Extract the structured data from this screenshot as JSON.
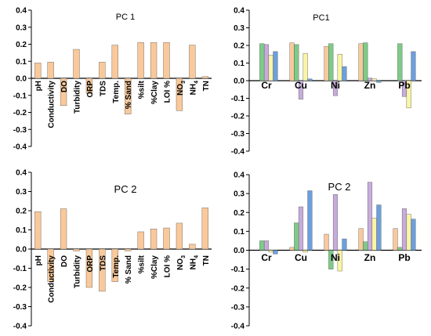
{
  "colors": {
    "peach": "#F9C99B",
    "green": "#7DCB87",
    "lavender": "#C7ACDB",
    "yellow": "#FAF5A6",
    "blue": "#6C9FDE",
    "bar_stroke": "#555555",
    "axis": "#000000"
  },
  "chart_data": [
    {
      "type": "bar",
      "title": "PC 1",
      "ylim": [
        -0.4,
        0.4
      ],
      "yticks": [
        "0.4",
        "0.3",
        "0.2",
        "0.1",
        "0.0",
        "-0.1",
        "-0.2",
        "-0.3",
        "-0.4"
      ],
      "categories": [
        "pH",
        "Conductivity",
        "DO",
        "Turbidity",
        "ORP",
        "TDS",
        "Temp.",
        "% Sand",
        "%silt",
        "%Clay",
        "LOI %",
        "NO3",
        "NH4",
        "TN"
      ],
      "values": [
        0.09,
        0.095,
        -0.16,
        0.17,
        -0.09,
        0.095,
        0.195,
        -0.21,
        0.21,
        0.21,
        0.21,
        -0.19,
        0.195,
        0.01
      ],
      "grid": false
    },
    {
      "type": "bar",
      "title": "PC1",
      "ylim": [
        -0.4,
        0.4
      ],
      "yticks": [
        "0.4",
        "0.3",
        "0.2",
        "0.1",
        "0.0",
        "-0.1",
        "-0.2",
        "-0.3",
        "-0.4"
      ],
      "categories": [
        "Cr",
        "Cu",
        "Ni",
        "Zn",
        "Pb"
      ],
      "series": [
        {
          "values": [
            0.0,
            0.215,
            0.195,
            0.21,
            0.0
          ]
        },
        {
          "values": [
            0.21,
            0.205,
            0.21,
            0.215,
            0.21
          ]
        },
        {
          "values": [
            0.205,
            -0.105,
            -0.085,
            0.015,
            -0.09
          ]
        },
        {
          "values": [
            0.145,
            0.155,
            0.15,
            0.01,
            -0.155
          ]
        },
        {
          "values": [
            0.165,
            0.01,
            0.08,
            -0.01,
            0.165
          ]
        }
      ],
      "grid": false
    },
    {
      "type": "bar",
      "title": "PC 2",
      "ylim": [
        -0.4,
        0.4
      ],
      "yticks": [
        "0.4",
        "0.3",
        "0.2",
        "0.1",
        "0.0",
        "-0.1",
        "-0.2",
        "-0.3",
        "-0.4"
      ],
      "categories": [
        "pH",
        "Conductivity",
        "DO",
        "Turbidity",
        "ORP",
        "TDS",
        "Temp.",
        "% Sand",
        "%silt",
        "%Clay",
        "LOI %",
        "NO3",
        "NH4",
        "TN"
      ],
      "values": [
        0.195,
        -0.17,
        0.21,
        -0.01,
        -0.2,
        -0.22,
        -0.17,
        -0.01,
        0.09,
        0.105,
        0.11,
        0.135,
        0.025,
        0.215
      ],
      "grid": false
    },
    {
      "type": "bar",
      "title": "PC 2",
      "ylim": [
        -0.4,
        0.4
      ],
      "yticks": [
        "0.4",
        "0.3",
        "0.2",
        "0.1",
        "0.0",
        "-0.1",
        "-0.2",
        "-0.3",
        "-0.4"
      ],
      "categories": [
        "Cr",
        "Cu",
        "Ni",
        "Zn",
        "Pb"
      ],
      "series": [
        {
          "values": [
            0.0,
            0.015,
            0.085,
            0.115,
            0.115
          ]
        },
        {
          "values": [
            0.05,
            0.145,
            -0.1,
            0.045,
            0.015
          ]
        },
        {
          "values": [
            0.05,
            0.23,
            0.295,
            0.36,
            0.22
          ]
        },
        {
          "values": [
            -0.01,
            -0.01,
            -0.11,
            0.17,
            0.19
          ]
        },
        {
          "values": [
            -0.02,
            0.315,
            0.06,
            0.24,
            0.165
          ]
        }
      ],
      "grid": false
    }
  ]
}
